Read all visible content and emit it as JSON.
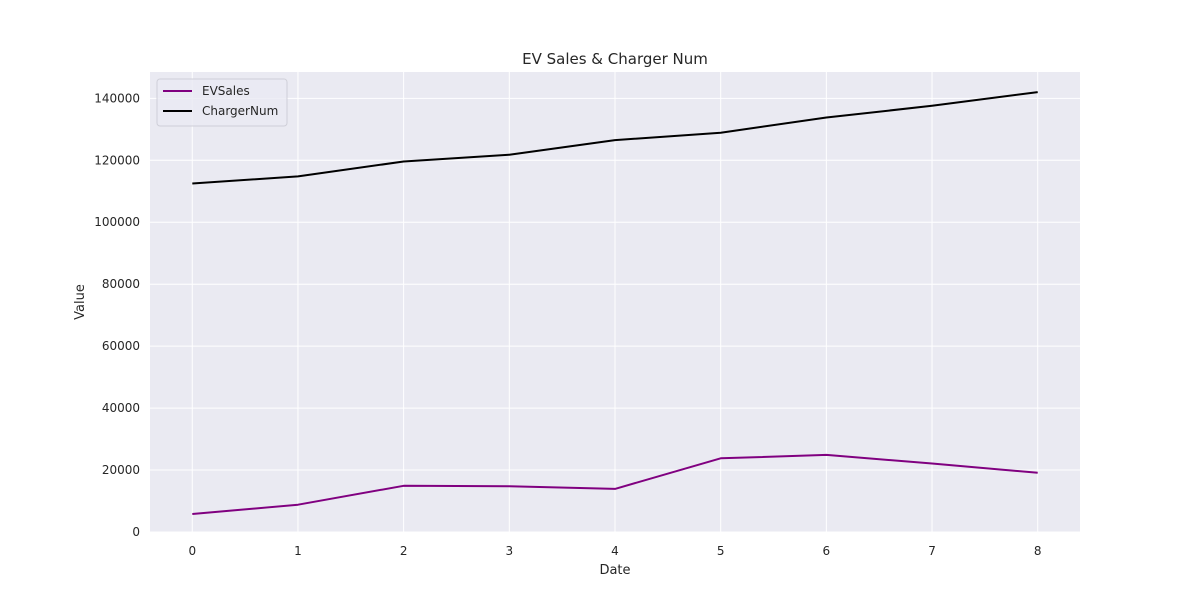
{
  "chart_data": {
    "type": "line",
    "title": "EV Sales & Charger Num",
    "xlabel": "Date",
    "ylabel": "Value",
    "x": [
      0,
      1,
      2,
      3,
      4,
      5,
      6,
      7,
      8
    ],
    "xlim": [
      -0.4,
      8.4
    ],
    "ylim": [
      0,
      148500
    ],
    "xticks": [
      "0",
      "1",
      "2",
      "3",
      "4",
      "5",
      "6",
      "7",
      "8"
    ],
    "yticks": [
      "0",
      "20000",
      "40000",
      "60000",
      "80000",
      "100000",
      "120000",
      "140000"
    ],
    "ytick_values": [
      0,
      20000,
      40000,
      60000,
      80000,
      100000,
      120000,
      140000
    ],
    "grid": true,
    "legend_position": "top-left",
    "background_color": "#eaeaf2",
    "grid_color": "#ffffff",
    "series": [
      {
        "name": "EVSales",
        "color": "#800080",
        "values": [
          5800,
          8800,
          14900,
          14800,
          13900,
          23800,
          24900,
          22100,
          19100
        ]
      },
      {
        "name": "ChargerNum",
        "color": "#000000",
        "values": [
          112500,
          114800,
          119600,
          121800,
          126500,
          128900,
          133800,
          137600,
          142000
        ]
      }
    ]
  }
}
